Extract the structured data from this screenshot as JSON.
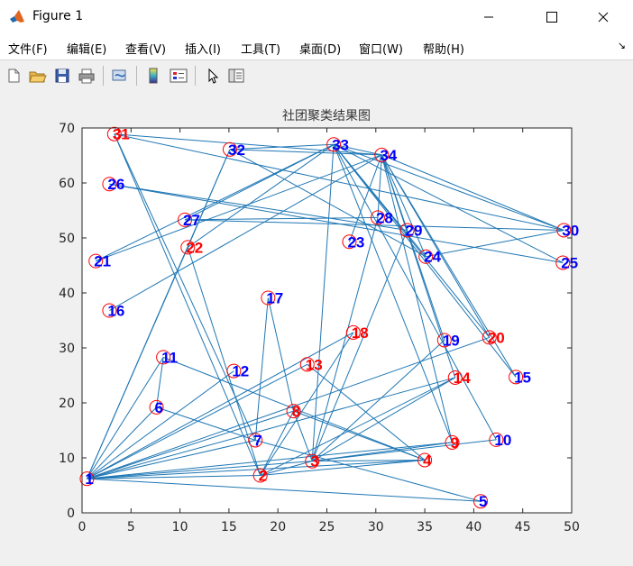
{
  "window": {
    "title": "Figure 1"
  },
  "menu": [
    "文件(F)",
    "编辑(E)",
    "查看(V)",
    "插入(I)",
    "工具(T)",
    "桌面(D)",
    "窗口(W)",
    "帮助(H)"
  ],
  "toolbar": [
    "new-figure",
    "open-file",
    "save",
    "print",
    "link-plot",
    "colorbar",
    "legend",
    "pointer",
    "property-inspector"
  ],
  "colors": {
    "edge": "#1f77b4",
    "node_circle": "#ff0000",
    "label_red": "#ff0000",
    "label_blue": "#0000ff"
  },
  "chart_data": {
    "type": "scatter",
    "title": "社团聚类结果图",
    "xlim": [
      0,
      50
    ],
    "ylim": [
      0,
      70
    ],
    "xticks": [
      0,
      5,
      10,
      15,
      20,
      25,
      30,
      35,
      40,
      45,
      50
    ],
    "yticks": [
      0,
      10,
      20,
      30,
      40,
      50,
      60,
      70
    ],
    "grid": false,
    "nodes": [
      {
        "id": 1,
        "x": 0.5,
        "y": 6.2,
        "community": "blue"
      },
      {
        "id": 2,
        "x": 18.2,
        "y": 6.8,
        "community": "red"
      },
      {
        "id": 3,
        "x": 23.5,
        "y": 9.4,
        "community": "red"
      },
      {
        "id": 4,
        "x": 35.0,
        "y": 9.6,
        "community": "red"
      },
      {
        "id": 5,
        "x": 40.7,
        "y": 2.1,
        "community": "blue"
      },
      {
        "id": 6,
        "x": 7.6,
        "y": 19.2,
        "community": "blue"
      },
      {
        "id": 7,
        "x": 17.7,
        "y": 13.2,
        "community": "blue"
      },
      {
        "id": 8,
        "x": 21.6,
        "y": 18.5,
        "community": "red"
      },
      {
        "id": 9,
        "x": 37.8,
        "y": 12.8,
        "community": "red"
      },
      {
        "id": 10,
        "x": 42.3,
        "y": 13.3,
        "community": "blue"
      },
      {
        "id": 11,
        "x": 8.3,
        "y": 28.3,
        "community": "blue"
      },
      {
        "id": 12,
        "x": 15.5,
        "y": 25.8,
        "community": "blue"
      },
      {
        "id": 13,
        "x": 23.0,
        "y": 27.0,
        "community": "red"
      },
      {
        "id": 14,
        "x": 38.1,
        "y": 24.6,
        "community": "red"
      },
      {
        "id": 15,
        "x": 44.3,
        "y": 24.7,
        "community": "blue"
      },
      {
        "id": 16,
        "x": 2.8,
        "y": 36.8,
        "community": "blue"
      },
      {
        "id": 17,
        "x": 19.0,
        "y": 39.1,
        "community": "blue"
      },
      {
        "id": 18,
        "x": 27.7,
        "y": 32.8,
        "community": "red"
      },
      {
        "id": 19,
        "x": 37.0,
        "y": 31.4,
        "community": "blue"
      },
      {
        "id": 20,
        "x": 41.6,
        "y": 31.9,
        "community": "red"
      },
      {
        "id": 21,
        "x": 1.4,
        "y": 45.8,
        "community": "blue"
      },
      {
        "id": 22,
        "x": 10.8,
        "y": 48.3,
        "community": "red"
      },
      {
        "id": 23,
        "x": 27.3,
        "y": 49.3,
        "community": "blue"
      },
      {
        "id": 24,
        "x": 35.1,
        "y": 46.6,
        "community": "blue"
      },
      {
        "id": 25,
        "x": 49.1,
        "y": 45.5,
        "community": "blue"
      },
      {
        "id": 26,
        "x": 2.8,
        "y": 59.8,
        "community": "blue"
      },
      {
        "id": 27,
        "x": 10.5,
        "y": 53.3,
        "community": "blue"
      },
      {
        "id": 28,
        "x": 30.2,
        "y": 53.7,
        "community": "blue"
      },
      {
        "id": 29,
        "x": 33.2,
        "y": 51.4,
        "community": "blue"
      },
      {
        "id": 30,
        "x": 49.2,
        "y": 51.4,
        "community": "blue"
      },
      {
        "id": 31,
        "x": 3.3,
        "y": 68.9,
        "community": "red"
      },
      {
        "id": 32,
        "x": 15.1,
        "y": 66.1,
        "community": "blue"
      },
      {
        "id": 33,
        "x": 25.7,
        "y": 67.0,
        "community": "blue"
      },
      {
        "id": 34,
        "x": 30.6,
        "y": 65.1,
        "community": "blue"
      }
    ],
    "edges": [
      [
        1,
        2
      ],
      [
        1,
        3
      ],
      [
        1,
        4
      ],
      [
        1,
        5
      ],
      [
        1,
        6
      ],
      [
        1,
        7
      ],
      [
        1,
        8
      ],
      [
        1,
        9
      ],
      [
        1,
        11
      ],
      [
        1,
        12
      ],
      [
        1,
        13
      ],
      [
        1,
        14
      ],
      [
        1,
        18
      ],
      [
        1,
        20
      ],
      [
        1,
        22
      ],
      [
        1,
        32
      ],
      [
        2,
        3
      ],
      [
        2,
        4
      ],
      [
        2,
        8
      ],
      [
        2,
        14
      ],
      [
        2,
        18
      ],
      [
        2,
        22
      ],
      [
        2,
        31
      ],
      [
        3,
        4
      ],
      [
        3,
        8
      ],
      [
        3,
        9
      ],
      [
        3,
        10
      ],
      [
        3,
        14
      ],
      [
        3,
        19
      ],
      [
        3,
        28
      ],
      [
        3,
        29
      ],
      [
        3,
        33
      ],
      [
        4,
        8
      ],
      [
        4,
        13
      ],
      [
        6,
        11
      ],
      [
        7,
        17
      ],
      [
        7,
        5
      ],
      [
        7,
        6
      ],
      [
        7,
        31
      ],
      [
        9,
        33
      ],
      [
        9,
        34
      ],
      [
        10,
        33
      ],
      [
        11,
        4
      ],
      [
        14,
        34
      ],
      [
        15,
        33
      ],
      [
        15,
        34
      ],
      [
        16,
        34
      ],
      [
        17,
        8
      ],
      [
        19,
        34
      ],
      [
        20,
        33
      ],
      [
        20,
        34
      ],
      [
        21,
        33
      ],
      [
        22,
        33
      ],
      [
        22,
        32
      ],
      [
        23,
        34
      ],
      [
        24,
        34
      ],
      [
        24,
        30
      ],
      [
        25,
        26
      ],
      [
        25,
        33
      ],
      [
        26,
        29
      ],
      [
        27,
        28
      ],
      [
        27,
        30
      ],
      [
        27,
        33
      ],
      [
        28,
        34
      ],
      [
        29,
        34
      ],
      [
        30,
        31
      ],
      [
        30,
        34
      ],
      [
        31,
        34
      ],
      [
        32,
        33
      ],
      [
        32,
        34
      ],
      [
        32,
        24
      ],
      [
        33,
        24
      ],
      [
        33,
        30
      ],
      [
        33,
        34
      ],
      [
        34,
        21
      ]
    ]
  }
}
